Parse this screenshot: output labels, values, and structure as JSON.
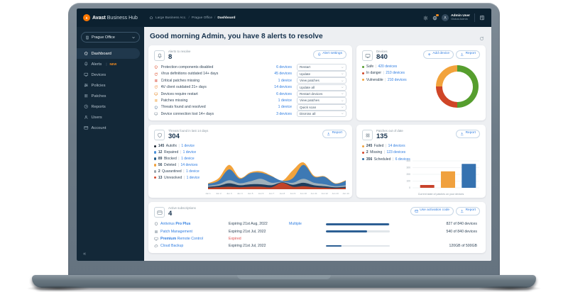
{
  "navbar": {
    "brand_bold": "Avast",
    "brand_rest": "Business Hub",
    "breadcrumb": [
      "Large Business Acc.",
      "Prague Office",
      "Dashboard"
    ],
    "user_name": "Admin User",
    "user_role": "Global Admin"
  },
  "sidebar": {
    "org_selector": "Prague Office",
    "items": [
      {
        "label": "Dashboard",
        "icon": "home-icon",
        "active": true
      },
      {
        "label": "Alerts",
        "icon": "bell-icon",
        "badge": "NEW"
      },
      {
        "label": "Devices",
        "icon": "monitor-icon"
      },
      {
        "label": "Policies",
        "icon": "sliders-icon"
      },
      {
        "label": "Patches",
        "icon": "grid-icon"
      },
      {
        "label": "Reports",
        "icon": "clock-icon"
      },
      {
        "label": "Users",
        "icon": "person-icon"
      },
      {
        "label": "Account",
        "icon": "card-icon"
      }
    ],
    "collapse_label": "«"
  },
  "header": {
    "greeting": "Good morning Admin, you have 8 alerts to resolve"
  },
  "cards": {
    "alerts": {
      "title": "Alerts to resolve",
      "count": "8",
      "settings_button": "Alert settings",
      "rows": [
        {
          "label": "Protection components disabled",
          "devices": "6 devices",
          "action": "Restart",
          "icon": "shield-icon",
          "color": "#e0512e"
        },
        {
          "label": "Virus definitions outdated 14+ days",
          "devices": "45 devices",
          "action": "Update",
          "icon": "refresh-icon",
          "color": "#e0512e"
        },
        {
          "label": "Critical patches missing",
          "devices": "1 device",
          "action": "View patches",
          "icon": "grid-icon",
          "color": "#d9412f"
        },
        {
          "label": "AV client outdated 21+ days",
          "devices": "14 devices",
          "action": "Update all",
          "icon": "refresh-icon",
          "color": "#ef8a3a"
        },
        {
          "label": "Devices require restart",
          "devices": "6 devices",
          "action": "Restart devices",
          "icon": "monitor-icon",
          "color": "#e8943d"
        },
        {
          "label": "Patches missing",
          "devices": "1 device",
          "action": "View patches",
          "icon": "grid-icon",
          "color": "#f0a13c"
        },
        {
          "label": "Threats found and resolved",
          "devices": "1 device",
          "action": "Quick scan",
          "icon": "shield-icon",
          "color": "#5b7d9e"
        },
        {
          "label": "Device connection lost 14+ days",
          "devices": "3 devices",
          "action": "Dismiss all",
          "icon": "monitor-icon",
          "color": "#8a98a4"
        }
      ]
    },
    "devices": {
      "title": "Devices",
      "count": "840",
      "add_button": "Add device",
      "report_button": "Report",
      "legend": [
        {
          "label": "Safe",
          "value": "420 devices",
          "color": "#569e2e"
        },
        {
          "label": "In danger",
          "value": "210 devices",
          "color": "#cf4527"
        },
        {
          "label": "Vulnerable",
          "value": "210 devices",
          "color": "#f2a33c"
        }
      ]
    },
    "threats": {
      "title": "Threats found in last 14 days",
      "count": "304",
      "report_button": "Report",
      "legend": [
        {
          "count": "145",
          "label": "Autofix",
          "devices": "1 device",
          "color": "#16202c"
        },
        {
          "count": "12",
          "label": "Repaired",
          "devices": "1 device",
          "color": "#4a90d9"
        },
        {
          "count": "89",
          "label": "Blocked",
          "devices": "1 device",
          "color": "#205a86"
        },
        {
          "count": "56",
          "label": "Deleted",
          "devices": "14 devices",
          "color": "#f0a13c"
        },
        {
          "count": "2",
          "label": "Quarantined",
          "devices": "1 device",
          "color": "#9aa5ad"
        },
        {
          "count": "13",
          "label": "Unresolved",
          "devices": "1 device",
          "color": "#d4472c"
        }
      ]
    },
    "patches": {
      "title": "Patches out of date",
      "count": "135",
      "report_button": "Report",
      "legend": [
        {
          "count": "245",
          "label": "Failed",
          "devices": "14 devices",
          "color": "#f0a13c"
        },
        {
          "count": "2",
          "label": "Missing",
          "devices": "123 devices",
          "color": "#d4472c"
        },
        {
          "count": "356",
          "label": "Scheduled",
          "devices": "6 devices",
          "color": "#2e6da4"
        }
      ]
    },
    "subscriptions": {
      "title": "Active subscriptions",
      "count": "4",
      "activation_button": "Use activation code",
      "report_button": "Report",
      "rows": [
        {
          "icon": "shield-icon",
          "name": [
            {
              "text": "Antivirus ",
              "bold": false
            },
            {
              "text": "Pro Plus",
              "bold": true
            }
          ],
          "expiry": "Expiring 21st Aug, 2022",
          "extra": "Multiple",
          "usage": "827 of 840 devices",
          "progress": 0.984
        },
        {
          "icon": "grid-icon",
          "name": [
            {
              "text": "Patch Management",
              "bold": false
            }
          ],
          "expiry": "Expiring 21st Jul, 2022",
          "usage": "540 of 840 devices",
          "progress": 0.643
        },
        {
          "icon": "monitor-icon",
          "name": [
            {
              "text": "Premium ",
              "bold": true
            },
            {
              "text": "Remote Control",
              "bold": false
            }
          ],
          "expiry": "Expired",
          "expired": true
        },
        {
          "icon": "cloud-icon",
          "name": [
            {
              "text": "Cloud Backup",
              "bold": false
            }
          ],
          "expiry": "Expiring 21st Jul, 2022",
          "usage": "120GB of 500GB",
          "progress": 0.24
        }
      ]
    }
  },
  "chart_data": [
    {
      "type": "pie",
      "title": "Devices",
      "donut": true,
      "labels": [
        "Safe",
        "In danger",
        "Vulnerable"
      ],
      "values": [
        420,
        210,
        210
      ],
      "colors": [
        "#569e2e",
        "#cf4527",
        "#f2a33c"
      ]
    },
    {
      "type": "area",
      "title": "Threats found in last 14 days",
      "stacked": true,
      "x": [
        "Jun 1",
        "Jun 2",
        "Jun 3",
        "Jun 4",
        "Jun 5",
        "Jun 6",
        "Jun 7",
        "Jun 8",
        "Jun 9",
        "Jun 10",
        "Jun 11",
        "Jun 12",
        "Jun 13",
        "Jun 14"
      ],
      "series": [
        {
          "name": "Unresolved",
          "color": "#c14328",
          "values": [
            3,
            4,
            5,
            4,
            5,
            5,
            4,
            13,
            5,
            6,
            4,
            3,
            2,
            3
          ]
        },
        {
          "name": "Blocked",
          "color": "#1f3d5c",
          "values": [
            2,
            3,
            7,
            4,
            5,
            5,
            4,
            1,
            4,
            7,
            4,
            3,
            2,
            2
          ]
        },
        {
          "name": "Quarantined",
          "color": "#9fb0ba",
          "values": [
            2,
            3,
            6,
            4,
            6,
            11,
            5,
            1,
            4,
            8,
            5,
            4,
            2,
            3
          ]
        },
        {
          "name": "Repaired",
          "color": "#3e79b4",
          "values": [
            4,
            7,
            22,
            9,
            16,
            12,
            13,
            2,
            9,
            28,
            12,
            15,
            5,
            9
          ]
        },
        {
          "name": "Deleted",
          "color": "#f2a33c",
          "values": [
            1,
            5,
            9,
            2,
            2,
            3,
            1,
            0,
            16,
            5,
            2,
            1,
            1,
            1
          ]
        }
      ],
      "note": "values estimated from pixels; series stacked bottom-to-top"
    },
    {
      "type": "bar",
      "categories": [
        "Missing",
        "Failed",
        "Scheduled"
      ],
      "values": [
        2,
        245,
        356
      ],
      "colors": [
        "#c8432b",
        "#f0a13e",
        "#3572b0"
      ],
      "ylim": [
        0,
        400
      ],
      "yticks": [
        0,
        100,
        200,
        300,
        400
      ],
      "caption": "Current state of patches on your devices"
    }
  ]
}
